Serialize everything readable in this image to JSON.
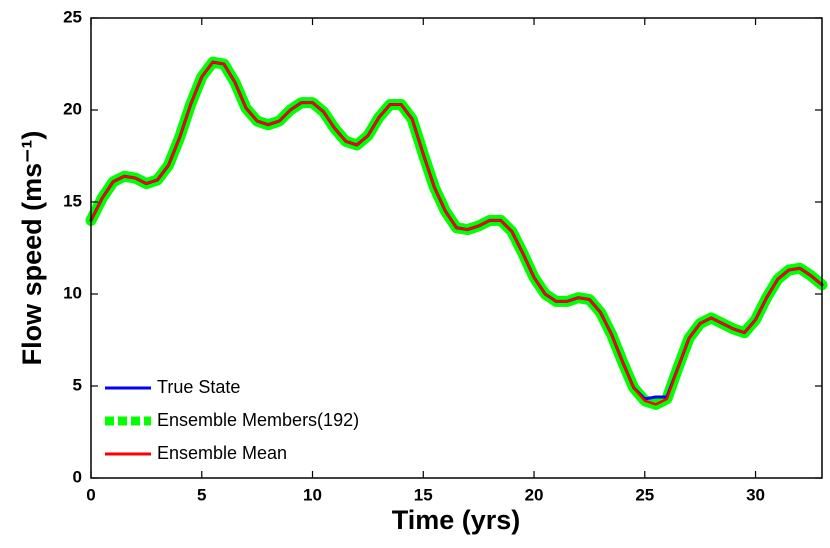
{
  "chart_data": {
    "type": "line",
    "xlabel": "Time (yrs)",
    "ylabel": "Flow speed (ms⁻¹)",
    "x": [
      0,
      0.5,
      1,
      1.5,
      2,
      2.5,
      3,
      3.5,
      4,
      4.5,
      5,
      5.5,
      6,
      6.5,
      7,
      7.5,
      8,
      8.5,
      9,
      9.5,
      10,
      10.5,
      11,
      11.5,
      12,
      12.5,
      13,
      13.5,
      14,
      14.5,
      15,
      15.5,
      16,
      16.5,
      17,
      17.5,
      18,
      18.5,
      19,
      19.5,
      20,
      20.5,
      21,
      21.5,
      22,
      22.5,
      23,
      23.5,
      24,
      24.5,
      25,
      25.5,
      26,
      26.5,
      27,
      27.5,
      28,
      28.5,
      29,
      29.5,
      30,
      30.5,
      31,
      31.5,
      32,
      32.5,
      33
    ],
    "series": [
      {
        "name": "True State",
        "color": "#0000ff",
        "values": [
          14.0,
          15.2,
          16.1,
          16.4,
          16.3,
          16.0,
          16.2,
          17.0,
          18.5,
          20.3,
          21.8,
          22.6,
          22.5,
          21.5,
          20.1,
          19.4,
          19.2,
          19.4,
          20.0,
          20.4,
          20.4,
          19.9,
          19.0,
          18.3,
          18.1,
          18.6,
          19.6,
          20.3,
          20.3,
          19.5,
          17.6,
          15.8,
          14.5,
          13.6,
          13.5,
          13.7,
          14.0,
          14.0,
          13.4,
          12.2,
          10.9,
          10.0,
          9.6,
          9.6,
          9.8,
          9.7,
          9.0,
          7.8,
          6.3,
          4.9,
          4.3,
          4.4,
          4.4,
          6.0,
          7.6,
          8.4,
          8.7,
          8.4,
          8.1,
          7.9,
          8.6,
          9.8,
          10.8,
          11.3,
          11.4,
          11.0,
          10.5
        ]
      },
      {
        "name": "Ensemble Members(192)",
        "color": "#00ff00",
        "values": [
          14.0,
          15.2,
          16.1,
          16.4,
          16.3,
          16.0,
          16.2,
          17.0,
          18.5,
          20.3,
          21.8,
          22.6,
          22.5,
          21.5,
          20.1,
          19.4,
          19.2,
          19.4,
          20.0,
          20.4,
          20.4,
          19.9,
          19.0,
          18.3,
          18.1,
          18.6,
          19.6,
          20.3,
          20.3,
          19.5,
          17.6,
          15.8,
          14.5,
          13.6,
          13.5,
          13.7,
          14.0,
          14.0,
          13.4,
          12.2,
          10.9,
          10.0,
          9.6,
          9.6,
          9.8,
          9.7,
          9.0,
          7.8,
          6.3,
          4.9,
          4.2,
          4.0,
          4.3,
          6.0,
          7.6,
          8.4,
          8.7,
          8.4,
          8.1,
          7.9,
          8.6,
          9.8,
          10.8,
          11.3,
          11.4,
          11.0,
          10.5
        ]
      },
      {
        "name": "Ensemble Mean",
        "color": "#ff0000",
        "values": [
          14.0,
          15.2,
          16.1,
          16.4,
          16.3,
          16.0,
          16.2,
          17.0,
          18.5,
          20.3,
          21.8,
          22.6,
          22.5,
          21.5,
          20.1,
          19.4,
          19.2,
          19.4,
          20.0,
          20.4,
          20.4,
          19.9,
          19.0,
          18.3,
          18.1,
          18.6,
          19.6,
          20.3,
          20.3,
          19.5,
          17.6,
          15.8,
          14.5,
          13.6,
          13.5,
          13.7,
          14.0,
          14.0,
          13.4,
          12.2,
          10.9,
          10.0,
          9.6,
          9.6,
          9.8,
          9.7,
          9.0,
          7.8,
          6.3,
          4.9,
          4.2,
          4.0,
          4.3,
          6.0,
          7.6,
          8.4,
          8.7,
          8.4,
          8.1,
          7.9,
          8.6,
          9.8,
          10.8,
          11.3,
          11.4,
          11.0,
          10.5
        ]
      }
    ],
    "xlim": [
      0,
      33
    ],
    "xticks": [
      0,
      5,
      10,
      15,
      20,
      25,
      30
    ],
    "ylim": [
      0,
      25
    ],
    "yticks": [
      0,
      5,
      10,
      15,
      20,
      25
    ],
    "legend": "lower left"
  }
}
